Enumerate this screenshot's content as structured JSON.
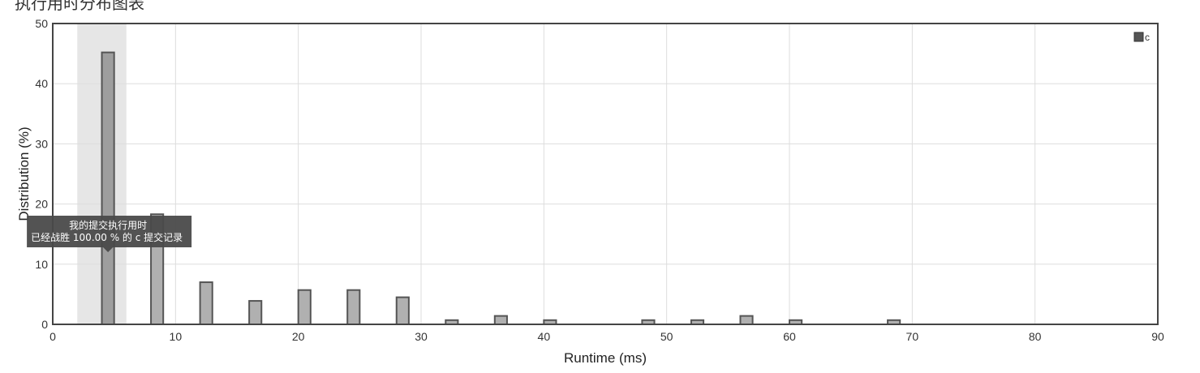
{
  "page": {
    "title": "执行用时分布图表"
  },
  "chart_data": {
    "type": "bar",
    "xlabel": "Runtime (ms)",
    "ylabel": "Distribution (%)",
    "xlim": [
      0,
      90
    ],
    "ylim": [
      0,
      50
    ],
    "x_ticks": [
      0,
      10,
      20,
      30,
      40,
      50,
      60,
      70,
      80,
      90
    ],
    "y_ticks": [
      0,
      10,
      20,
      30,
      40,
      50
    ],
    "grid": true,
    "legend": {
      "position": "top-right"
    },
    "series": [
      {
        "name": "c",
        "color": "#b0b0b0",
        "stroke": "#555555",
        "bin_width": 1,
        "x": [
          4.5,
          8.5,
          12.5,
          16.5,
          20.5,
          24.5,
          28.5,
          32.5,
          36.5,
          40.5,
          48.5,
          52.5,
          56.5,
          60.5,
          68.5
        ],
        "values": [
          45.2,
          18.3,
          7.0,
          3.9,
          5.7,
          5.7,
          4.5,
          0.7,
          1.4,
          0.7,
          0.7,
          0.7,
          1.4,
          0.7,
          0.7
        ]
      }
    ],
    "highlight": {
      "x_range": [
        2,
        6
      ],
      "color": "#e6e6e6",
      "bar_color": "#9e9e9e"
    },
    "annotation": {
      "x": 4.5,
      "y": 12.0,
      "line1": "我的提交执行用时",
      "line2": "已经战胜 100.00 % 的 c 提交记录"
    }
  }
}
